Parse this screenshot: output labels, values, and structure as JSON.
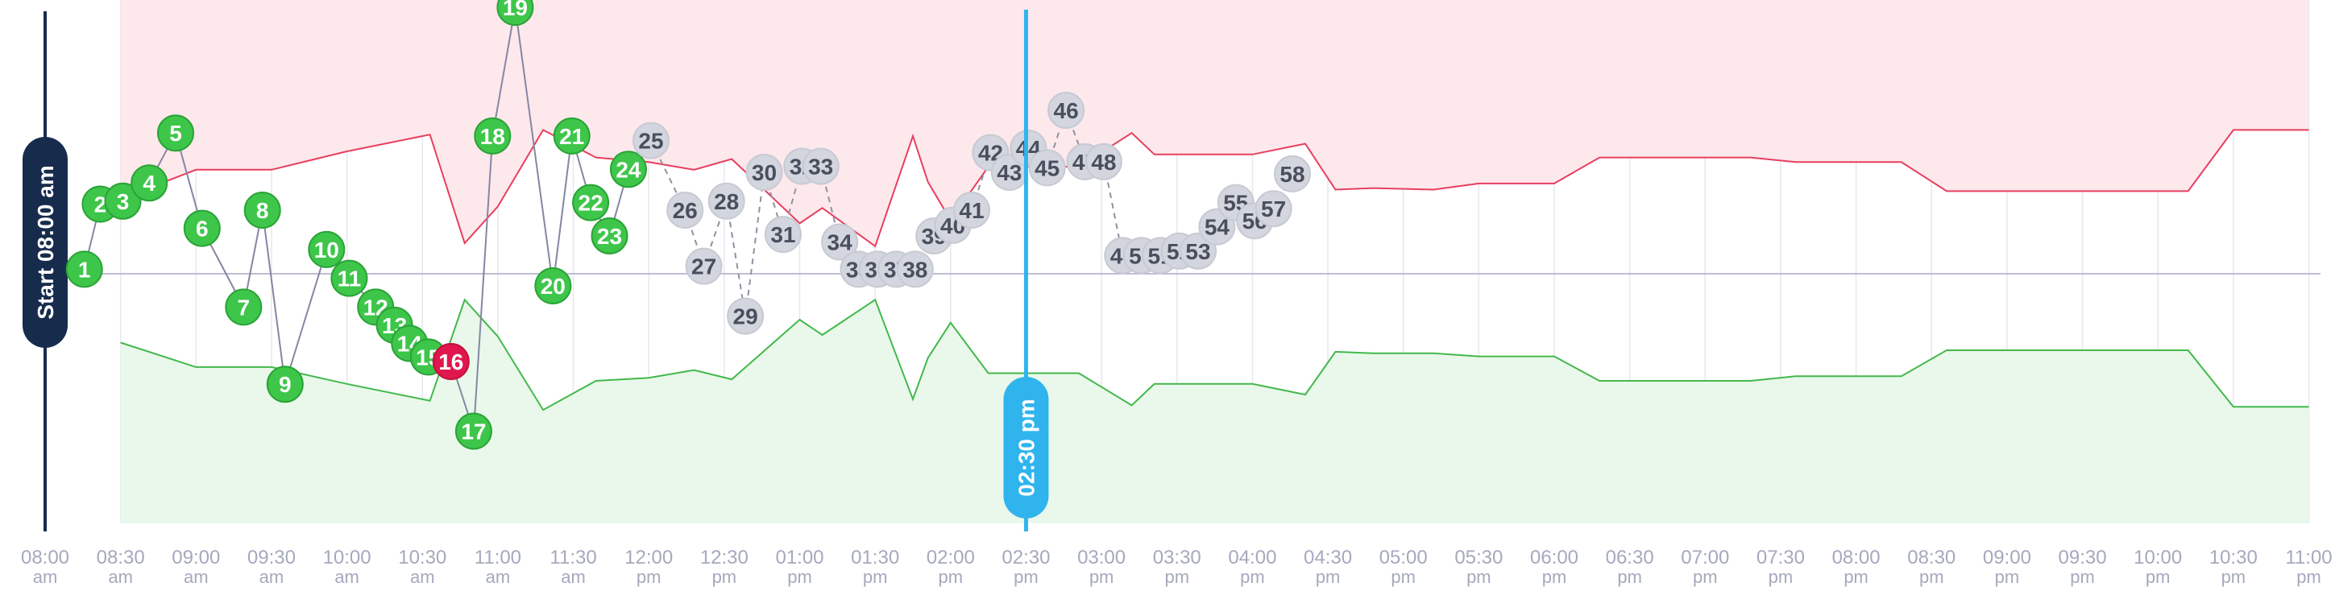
{
  "chart_data": {
    "type": "line",
    "start_label": "Start 08:00 am",
    "current_label": "02:30 pm",
    "x_ticks": [
      {
        "t": "08:00",
        "ampm": "am"
      },
      {
        "t": "08:30",
        "ampm": "am"
      },
      {
        "t": "09:00",
        "ampm": "am"
      },
      {
        "t": "09:30",
        "ampm": "am"
      },
      {
        "t": "10:00",
        "ampm": "am"
      },
      {
        "t": "10:30",
        "ampm": "am"
      },
      {
        "t": "11:00",
        "ampm": "am"
      },
      {
        "t": "11:30",
        "ampm": "am"
      },
      {
        "t": "12:00",
        "ampm": "pm"
      },
      {
        "t": "12:30",
        "ampm": "pm"
      },
      {
        "t": "01:00",
        "ampm": "pm"
      },
      {
        "t": "01:30",
        "ampm": "pm"
      },
      {
        "t": "02:00",
        "ampm": "pm"
      },
      {
        "t": "02:30",
        "ampm": "pm"
      },
      {
        "t": "03:00",
        "ampm": "pm"
      },
      {
        "t": "03:30",
        "ampm": "pm"
      },
      {
        "t": "04:00",
        "ampm": "pm"
      },
      {
        "t": "04:30",
        "ampm": "pm"
      },
      {
        "t": "05:00",
        "ampm": "pm"
      },
      {
        "t": "05:30",
        "ampm": "pm"
      },
      {
        "t": "06:00",
        "ampm": "pm"
      },
      {
        "t": "06:30",
        "ampm": "pm"
      },
      {
        "t": "07:00",
        "ampm": "pm"
      },
      {
        "t": "07:30",
        "ampm": "pm"
      },
      {
        "t": "08:00",
        "ampm": "pm"
      },
      {
        "t": "08:30",
        "ampm": "pm"
      },
      {
        "t": "09:00",
        "ampm": "pm"
      },
      {
        "t": "09:30",
        "ampm": "pm"
      },
      {
        "t": "10:00",
        "ampm": "pm"
      },
      {
        "t": "10:30",
        "ampm": "pm"
      },
      {
        "t": "11:00",
        "ampm": "pm"
      }
    ],
    "x_range_hours": [
      0,
      15
    ],
    "current_hours": 6.5,
    "y_range": [
      -100,
      100
    ],
    "upper_band": [
      [
        0.5,
        49
      ],
      [
        1.0,
        68
      ],
      [
        1.5,
        68
      ],
      [
        2.0,
        80
      ],
      [
        2.55,
        91
      ],
      [
        2.78,
        20
      ],
      [
        3.0,
        44
      ],
      [
        3.3,
        94
      ],
      [
        3.65,
        76
      ],
      [
        4.0,
        73
      ],
      [
        4.3,
        68
      ],
      [
        4.55,
        75
      ],
      [
        5.0,
        33
      ],
      [
        5.15,
        43
      ],
      [
        5.5,
        18
      ],
      [
        5.75,
        90
      ],
      [
        5.85,
        60
      ],
      [
        6.0,
        35
      ],
      [
        6.25,
        70
      ],
      [
        6.85,
        70
      ],
      [
        7.2,
        92
      ],
      [
        7.35,
        78
      ],
      [
        8.0,
        78
      ],
      [
        8.35,
        85
      ],
      [
        8.55,
        55
      ],
      [
        8.8,
        56
      ],
      [
        9.2,
        55
      ],
      [
        9.5,
        59
      ],
      [
        10.0,
        59
      ],
      [
        10.3,
        76
      ],
      [
        11.3,
        76
      ],
      [
        11.6,
        73
      ],
      [
        12.3,
        73
      ],
      [
        12.6,
        54
      ],
      [
        13.0,
        54
      ],
      [
        13.5,
        54
      ],
      [
        14.2,
        54
      ],
      [
        14.5,
        94
      ],
      [
        15.0,
        94
      ]
    ],
    "lower_band": [
      [
        0.5,
        -45
      ],
      [
        1.0,
        -61
      ],
      [
        1.5,
        -61
      ],
      [
        2.0,
        -72
      ],
      [
        2.55,
        -83
      ],
      [
        2.78,
        -17
      ],
      [
        3.0,
        -41
      ],
      [
        3.3,
        -89
      ],
      [
        3.65,
        -70
      ],
      [
        4.0,
        -68
      ],
      [
        4.3,
        -63
      ],
      [
        4.55,
        -69
      ],
      [
        5.0,
        -30
      ],
      [
        5.15,
        -40
      ],
      [
        5.5,
        -17
      ],
      [
        5.75,
        -82
      ],
      [
        5.85,
        -55
      ],
      [
        6.0,
        -32
      ],
      [
        6.25,
        -65
      ],
      [
        6.85,
        -65
      ],
      [
        7.2,
        -86
      ],
      [
        7.35,
        -72
      ],
      [
        8.0,
        -72
      ],
      [
        8.35,
        -79
      ],
      [
        8.55,
        -51
      ],
      [
        8.8,
        -52
      ],
      [
        9.2,
        -52
      ],
      [
        9.5,
        -54
      ],
      [
        10.0,
        -54
      ],
      [
        10.3,
        -70
      ],
      [
        11.3,
        -70
      ],
      [
        11.6,
        -67
      ],
      [
        12.3,
        -67
      ],
      [
        12.6,
        -50
      ],
      [
        13.0,
        -50
      ],
      [
        13.5,
        -50
      ],
      [
        14.2,
        -50
      ],
      [
        14.5,
        -87
      ],
      [
        15.0,
        -87
      ]
    ],
    "colors": {
      "completed": "#3ec64a",
      "completed_border": "#2aa337",
      "alert": "#e0174e",
      "pending": "#d3d6de",
      "pending_text": "#4a4f5e",
      "upper_line": "#e73f5f",
      "upper_fill": "#fde8ec",
      "lower_line": "#43b84c",
      "lower_fill": "#e9f8ea",
      "current_line": "#2fb4ee",
      "start_line": "#172b4d",
      "baseline": "#a7a9c6",
      "tick_text": "#a5a9bd",
      "grid": "#e6e8ec"
    },
    "points": [
      {
        "label": "1",
        "x": 0.52,
        "y": 3,
        "status": "done"
      },
      {
        "label": "2",
        "x": 0.73,
        "y": 46,
        "status": "done"
      },
      {
        "label": "3",
        "x": 1.03,
        "y": 48,
        "status": "done"
      },
      {
        "label": "4",
        "x": 1.38,
        "y": 60,
        "status": "done"
      },
      {
        "label": "5",
        "x": 1.73,
        "y": 93,
        "status": "done"
      },
      {
        "label": "6",
        "x": 2.08,
        "y": 30,
        "status": "done"
      },
      {
        "label": "7",
        "x": 2.63,
        "y": -22,
        "status": "done"
      },
      {
        "label": "8",
        "x": 2.88,
        "y": 42,
        "status": "done"
      },
      {
        "label": "9",
        "x": 3.18,
        "y": -73,
        "status": "done"
      },
      {
        "label": "10",
        "x": 3.73,
        "y": 16,
        "status": "done"
      },
      {
        "label": "11",
        "x": 4.03,
        "y": -3,
        "status": "done"
      },
      {
        "label": "12",
        "x": 4.38,
        "y": -22,
        "status": "done"
      },
      {
        "label": "13",
        "x": 4.63,
        "y": -34,
        "status": "done"
      },
      {
        "label": "14",
        "x": 4.83,
        "y": -46,
        "status": "done"
      },
      {
        "label": "15",
        "x": 5.08,
        "y": -55,
        "status": "done"
      },
      {
        "label": "16",
        "x": 5.38,
        "y": -58,
        "status": "alert"
      },
      {
        "label": "17",
        "x": 5.68,
        "y": -104,
        "status": "done"
      },
      {
        "label": "18",
        "x": 5.93,
        "y": 91,
        "status": "done"
      },
      {
        "label": "19",
        "x": 6.23,
        "y": 176,
        "status": "done"
      },
      {
        "label": "20",
        "x": 6.73,
        "y": -8,
        "status": "done"
      },
      {
        "label": "21",
        "x": 6.98,
        "y": 91,
        "status": "done"
      },
      {
        "label": "22",
        "x": 7.23,
        "y": 47,
        "status": "done"
      },
      {
        "label": "23",
        "x": 7.48,
        "y": 25,
        "status": "done"
      },
      {
        "label": "24",
        "x": 7.73,
        "y": 69,
        "status": "done"
      },
      {
        "label": "25",
        "x": 8.03,
        "y": 88,
        "status": "pending"
      },
      {
        "label": "26",
        "x": 8.48,
        "y": 42,
        "status": "pending"
      },
      {
        "label": "27",
        "x": 8.73,
        "y": 5,
        "status": "pending"
      },
      {
        "label": "28",
        "x": 9.03,
        "y": 48,
        "status": "pending"
      },
      {
        "label": "29",
        "x": 9.28,
        "y": -28,
        "status": "pending"
      },
      {
        "label": "30",
        "x": 9.53,
        "y": 67,
        "status": "pending"
      },
      {
        "label": "31",
        "x": 9.78,
        "y": 26,
        "status": "pending"
      },
      {
        "label": "32",
        "x": 10.03,
        "y": 71,
        "status": "pending"
      },
      {
        "label": "33",
        "x": 10.28,
        "y": 71,
        "status": "pending"
      },
      {
        "label": "34",
        "x": 10.53,
        "y": 21,
        "status": "pending"
      },
      {
        "label": "35",
        "x": 10.78,
        "y": 3,
        "status": "pending"
      },
      {
        "label": "36",
        "x": 11.03,
        "y": 3,
        "status": "pending"
      },
      {
        "label": "37",
        "x": 11.28,
        "y": 3,
        "status": "pending"
      },
      {
        "label": "38",
        "x": 11.53,
        "y": 3,
        "status": "pending"
      },
      {
        "label": "39",
        "x": 11.78,
        "y": 25,
        "status": "pending"
      },
      {
        "label": "40",
        "x": 12.03,
        "y": 32,
        "status": "pending"
      },
      {
        "label": "41",
        "x": 12.28,
        "y": 42,
        "status": "pending"
      },
      {
        "label": "42",
        "x": 12.53,
        "y": 80,
        "status": "pending"
      },
      {
        "label": "43",
        "x": 12.78,
        "y": 67,
        "status": "pending"
      },
      {
        "label": "44",
        "x": 13.03,
        "y": 83,
        "status": "pending"
      },
      {
        "label": "45",
        "x": 13.28,
        "y": 70,
        "status": "pending"
      },
      {
        "label": "46",
        "x": 13.53,
        "y": 108,
        "status": "pending"
      },
      {
        "label": "47",
        "x": 13.78,
        "y": 74,
        "status": "pending"
      },
      {
        "label": "48",
        "x": 14.03,
        "y": 74,
        "status": "pending"
      },
      {
        "label": "49",
        "x": 14.28,
        "y": 12,
        "status": "pending"
      },
      {
        "label": "50",
        "x": 14.53,
        "y": 12,
        "status": "pending"
      },
      {
        "label": "51",
        "x": 14.78,
        "y": 12,
        "status": "pending"
      },
      {
        "label": "52",
        "x": 15.03,
        "y": 15,
        "status": "pending"
      },
      {
        "label": "53",
        "x": 15.28,
        "y": 15,
        "status": "pending"
      },
      {
        "label": "54",
        "x": 15.53,
        "y": 31,
        "status": "pending"
      },
      {
        "label": "55",
        "x": 15.78,
        "y": 47,
        "status": "pending"
      },
      {
        "label": "56",
        "x": 16.03,
        "y": 35,
        "status": "pending"
      },
      {
        "label": "57",
        "x": 16.28,
        "y": 43,
        "status": "pending"
      },
      {
        "label": "58",
        "x": 16.53,
        "y": 66,
        "status": "pending"
      }
    ]
  }
}
